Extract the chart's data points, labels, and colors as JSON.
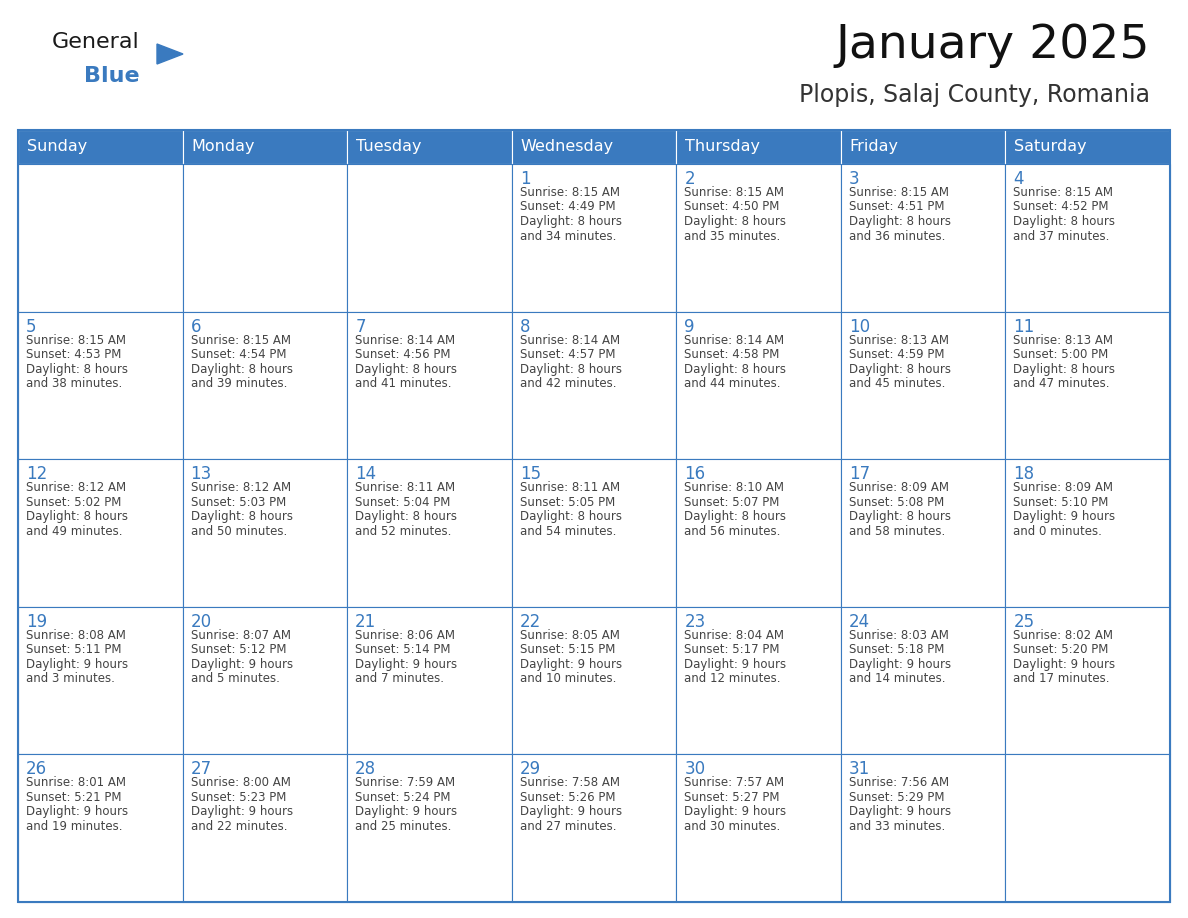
{
  "title": "January 2025",
  "subtitle": "Plopis, Salaj County, Romania",
  "header_color": "#3a7abf",
  "header_text_color": "#ffffff",
  "cell_bg_color": "#ffffff",
  "cell_border_color": "#3a7abf",
  "day_number_color": "#3a7abf",
  "text_color": "#444444",
  "background_color": "#ffffff",
  "days_of_week": [
    "Sunday",
    "Monday",
    "Tuesday",
    "Wednesday",
    "Thursday",
    "Friday",
    "Saturday"
  ],
  "calendar_data": [
    [
      {
        "day": "",
        "sunrise": "",
        "sunset": "",
        "daylight": ""
      },
      {
        "day": "",
        "sunrise": "",
        "sunset": "",
        "daylight": ""
      },
      {
        "day": "",
        "sunrise": "",
        "sunset": "",
        "daylight": ""
      },
      {
        "day": "1",
        "sunrise": "8:15 AM",
        "sunset": "4:49 PM",
        "daylight": "8 hours and 34 minutes."
      },
      {
        "day": "2",
        "sunrise": "8:15 AM",
        "sunset": "4:50 PM",
        "daylight": "8 hours and 35 minutes."
      },
      {
        "day": "3",
        "sunrise": "8:15 AM",
        "sunset": "4:51 PM",
        "daylight": "8 hours and 36 minutes."
      },
      {
        "day": "4",
        "sunrise": "8:15 AM",
        "sunset": "4:52 PM",
        "daylight": "8 hours and 37 minutes."
      }
    ],
    [
      {
        "day": "5",
        "sunrise": "8:15 AM",
        "sunset": "4:53 PM",
        "daylight": "8 hours and 38 minutes."
      },
      {
        "day": "6",
        "sunrise": "8:15 AM",
        "sunset": "4:54 PM",
        "daylight": "8 hours and 39 minutes."
      },
      {
        "day": "7",
        "sunrise": "8:14 AM",
        "sunset": "4:56 PM",
        "daylight": "8 hours and 41 minutes."
      },
      {
        "day": "8",
        "sunrise": "8:14 AM",
        "sunset": "4:57 PM",
        "daylight": "8 hours and 42 minutes."
      },
      {
        "day": "9",
        "sunrise": "8:14 AM",
        "sunset": "4:58 PM",
        "daylight": "8 hours and 44 minutes."
      },
      {
        "day": "10",
        "sunrise": "8:13 AM",
        "sunset": "4:59 PM",
        "daylight": "8 hours and 45 minutes."
      },
      {
        "day": "11",
        "sunrise": "8:13 AM",
        "sunset": "5:00 PM",
        "daylight": "8 hours and 47 minutes."
      }
    ],
    [
      {
        "day": "12",
        "sunrise": "8:12 AM",
        "sunset": "5:02 PM",
        "daylight": "8 hours and 49 minutes."
      },
      {
        "day": "13",
        "sunrise": "8:12 AM",
        "sunset": "5:03 PM",
        "daylight": "8 hours and 50 minutes."
      },
      {
        "day": "14",
        "sunrise": "8:11 AM",
        "sunset": "5:04 PM",
        "daylight": "8 hours and 52 minutes."
      },
      {
        "day": "15",
        "sunrise": "8:11 AM",
        "sunset": "5:05 PM",
        "daylight": "8 hours and 54 minutes."
      },
      {
        "day": "16",
        "sunrise": "8:10 AM",
        "sunset": "5:07 PM",
        "daylight": "8 hours and 56 minutes."
      },
      {
        "day": "17",
        "sunrise": "8:09 AM",
        "sunset": "5:08 PM",
        "daylight": "8 hours and 58 minutes."
      },
      {
        "day": "18",
        "sunrise": "8:09 AM",
        "sunset": "5:10 PM",
        "daylight": "9 hours and 0 minutes."
      }
    ],
    [
      {
        "day": "19",
        "sunrise": "8:08 AM",
        "sunset": "5:11 PM",
        "daylight": "9 hours and 3 minutes."
      },
      {
        "day": "20",
        "sunrise": "8:07 AM",
        "sunset": "5:12 PM",
        "daylight": "9 hours and 5 minutes."
      },
      {
        "day": "21",
        "sunrise": "8:06 AM",
        "sunset": "5:14 PM",
        "daylight": "9 hours and 7 minutes."
      },
      {
        "day": "22",
        "sunrise": "8:05 AM",
        "sunset": "5:15 PM",
        "daylight": "9 hours and 10 minutes."
      },
      {
        "day": "23",
        "sunrise": "8:04 AM",
        "sunset": "5:17 PM",
        "daylight": "9 hours and 12 minutes."
      },
      {
        "day": "24",
        "sunrise": "8:03 AM",
        "sunset": "5:18 PM",
        "daylight": "9 hours and 14 minutes."
      },
      {
        "day": "25",
        "sunrise": "8:02 AM",
        "sunset": "5:20 PM",
        "daylight": "9 hours and 17 minutes."
      }
    ],
    [
      {
        "day": "26",
        "sunrise": "8:01 AM",
        "sunset": "5:21 PM",
        "daylight": "9 hours and 19 minutes."
      },
      {
        "day": "27",
        "sunrise": "8:00 AM",
        "sunset": "5:23 PM",
        "daylight": "9 hours and 22 minutes."
      },
      {
        "day": "28",
        "sunrise": "7:59 AM",
        "sunset": "5:24 PM",
        "daylight": "9 hours and 25 minutes."
      },
      {
        "day": "29",
        "sunrise": "7:58 AM",
        "sunset": "5:26 PM",
        "daylight": "9 hours and 27 minutes."
      },
      {
        "day": "30",
        "sunrise": "7:57 AM",
        "sunset": "5:27 PM",
        "daylight": "9 hours and 30 minutes."
      },
      {
        "day": "31",
        "sunrise": "7:56 AM",
        "sunset": "5:29 PM",
        "daylight": "9 hours and 33 minutes."
      },
      {
        "day": "",
        "sunrise": "",
        "sunset": "",
        "daylight": ""
      }
    ]
  ],
  "logo_text_general": "General",
  "logo_text_blue": "Blue",
  "logo_color_general": "#1a1a1a",
  "logo_color_blue": "#3a7abf",
  "logo_triangle_color": "#3a7abf",
  "fig_width": 11.88,
  "fig_height": 9.18,
  "dpi": 100
}
